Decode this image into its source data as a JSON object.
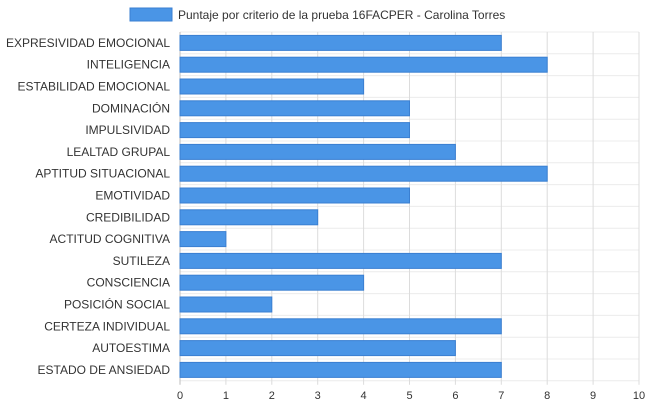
{
  "chart_data": {
    "type": "bar",
    "orientation": "horizontal",
    "legend": {
      "label": "Puntaje por criterio de la prueba 16FACPER - Carolina Torres",
      "position": "top",
      "color": "#4a95e6",
      "border": "#3a7fd1"
    },
    "categories": [
      "EXPRESIVIDAD EMOCIONAL",
      "INTELIGENCIA",
      "ESTABILIDAD EMOCIONAL",
      "DOMINACIÓN",
      "IMPULSIVIDAD",
      "LEALTAD GRUPAL",
      "APTITUD SITUACIONAL",
      "EMOTIVIDAD",
      "CREDIBILIDAD",
      "ACTITUD COGNITIVA",
      "SUTILEZA",
      "CONSCIENCIA",
      "POSICIÓN SOCIAL",
      "CERTEZA INDIVIDUAL",
      "AUTOESTIMA",
      "ESTADO DE ANSIEDAD"
    ],
    "series": [
      {
        "name": "Puntaje por criterio de la prueba 16FACPER - Carolina Torres",
        "values": [
          7,
          8,
          4,
          5,
          5,
          6,
          8,
          5,
          3,
          1,
          7,
          4,
          2,
          7,
          6,
          7
        ]
      }
    ],
    "xlim": [
      0,
      10
    ],
    "xticks": [
      "0",
      "1",
      "2",
      "3",
      "4",
      "5",
      "6",
      "7",
      "8",
      "9",
      "10"
    ],
    "grid": true,
    "colors": {
      "bar": "#4a95e6",
      "bar_border": "#3a7fd1",
      "grid": "#dcdcdc",
      "text": "#333333"
    }
  }
}
